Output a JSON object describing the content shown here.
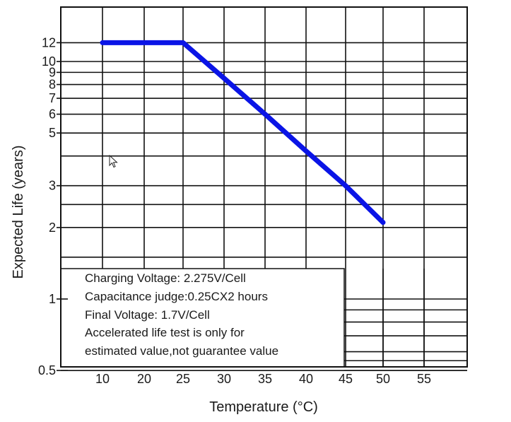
{
  "chart_data": {
    "type": "line",
    "title": "",
    "xlabel": "Temperature (°C)",
    "ylabel": "Expected Life (years)",
    "xlim": [
      5,
      60
    ],
    "ylim": [
      0.45,
      17
    ],
    "y_scale": "log",
    "grid": true,
    "x_ticks": [
      10,
      20,
      25,
      30,
      35,
      40,
      45,
      50,
      55
    ],
    "y_ticks": [
      0.5,
      1,
      2,
      3,
      5,
      6,
      7,
      8,
      9,
      10,
      12
    ],
    "series": [
      {
        "color": "#0a14e6",
        "x": [
          10,
          25,
          30,
          35,
          40,
          45,
          50
        ],
        "y": [
          12,
          12,
          8.5,
          6,
          4.2,
          3,
          2.1
        ]
      }
    ],
    "annotations": [
      "Charging Voltage: 2.275V/Cell",
      "Capacitance judge:0.25CX2 hours",
      "Final Voltage: 1.7V/Cell",
      "Accelerated life test is only for",
      "estimated value,not guarantee value"
    ]
  }
}
